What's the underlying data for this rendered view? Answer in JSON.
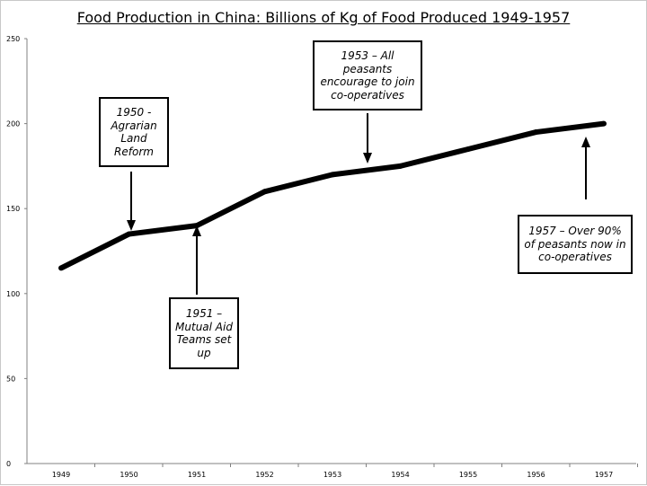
{
  "chart_data": {
    "type": "line",
    "title": "Food Production in China: Billions of Kg of Food Produced 1949-1957",
    "xlabel": "",
    "ylabel": "",
    "ylim": [
      0,
      250
    ],
    "y_ticks": [
      "0",
      "50",
      "100",
      "150",
      "200",
      "250"
    ],
    "categories": [
      "1949",
      "1950",
      "1951",
      "1952",
      "1953",
      "1954",
      "1955",
      "1956",
      "1957"
    ],
    "values": [
      115,
      135,
      140,
      160,
      170,
      175,
      185,
      195,
      200
    ],
    "line_color": "#000000",
    "grid": false,
    "annotations": [
      {
        "id": "a1950",
        "text": "1950 - Agrarian Land Reform",
        "points_to": "1950"
      },
      {
        "id": "a1951",
        "text": "1951 – Mutual Aid Teams set up",
        "points_to": "1951"
      },
      {
        "id": "a1953",
        "text": "1953 – All peasants encourage to join co-operatives",
        "points_to": "1953"
      },
      {
        "id": "a1957",
        "text": "1957 – Over 90% of peasants now in co-operatives",
        "points_to": "1957"
      }
    ]
  }
}
